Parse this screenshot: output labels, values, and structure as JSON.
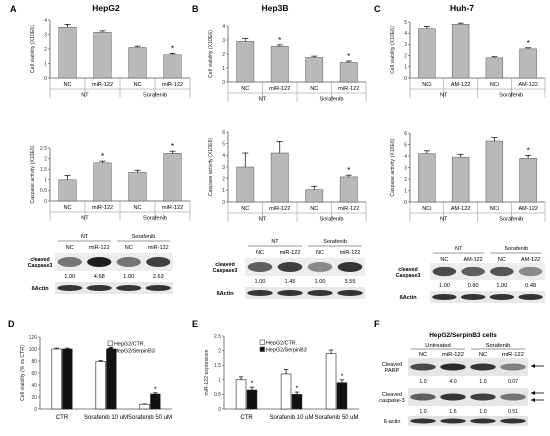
{
  "colors": {
    "bar_gray": "#b9b9b9",
    "bar_black": "#111111",
    "bar_white": "#ffffff",
    "axis": "#555555"
  },
  "panels": {
    "A": {
      "letter": "A",
      "title": "HepG2"
    },
    "B": {
      "letter": "B",
      "title": "Hep3B"
    },
    "C": {
      "letter": "C",
      "title": "Huh-7"
    },
    "D": {
      "letter": "D"
    },
    "E": {
      "letter": "E"
    },
    "F": {
      "letter": "F",
      "title": "HepG2/SerpinB3 cells"
    }
  },
  "chart_data": [
    {
      "id": "A-viab",
      "type": "bar",
      "ylabel": "Cell viability (X10E6)",
      "ylim": [
        0,
        4
      ],
      "yticks": [
        0,
        1,
        2,
        3,
        4
      ],
      "categories": [
        "NC",
        "miR-122",
        "NC",
        "miR-122"
      ],
      "values": [
        3.5,
        3.15,
        2.1,
        1.6
      ],
      "errors": [
        0.2,
        0.1,
        0.1,
        0.1
      ],
      "stars": [
        false,
        false,
        false,
        true
      ],
      "groups": [
        "NT",
        "Sorafenib"
      ]
    },
    {
      "id": "B-viab",
      "type": "bar",
      "ylabel": "Cell viability (X10E6)",
      "ylim": [
        0,
        4
      ],
      "yticks": [
        0,
        1,
        2,
        3,
        4
      ],
      "categories": [
        "NC",
        "miR-122",
        "NC",
        "miR-122"
      ],
      "values": [
        2.9,
        2.55,
        1.75,
        1.4
      ],
      "errors": [
        0.2,
        0.1,
        0.1,
        0.1
      ],
      "stars": [
        false,
        true,
        false,
        true
      ],
      "groups": [
        "NT",
        "Sorafenib"
      ]
    },
    {
      "id": "C-viab",
      "type": "bar",
      "ylabel": "Cell viability (X10E6)",
      "ylim": [
        0,
        5
      ],
      "yticks": [
        0,
        1,
        2,
        3,
        4,
        5
      ],
      "categories": [
        "NCi",
        "AM-122",
        "NCi",
        "AM-122"
      ],
      "values": [
        4.4,
        4.8,
        1.8,
        2.6
      ],
      "errors": [
        0.2,
        0.1,
        0.1,
        0.1
      ],
      "stars": [
        false,
        false,
        false,
        true
      ],
      "groups": [
        "NT",
        "Sorafenib"
      ]
    },
    {
      "id": "A-casp",
      "type": "bar",
      "ylabel": "Caspase activity (X10E6)",
      "ylim": [
        0,
        2.5
      ],
      "yticks": [
        0,
        0.5,
        1,
        1.5,
        2,
        2.5
      ],
      "categories": [
        "NC",
        "miR-122",
        "NC",
        "miR-122"
      ],
      "values": [
        1.0,
        1.8,
        1.35,
        2.25
      ],
      "errors": [
        0.2,
        0.08,
        0.1,
        0.1
      ],
      "stars": [
        false,
        true,
        false,
        true
      ],
      "groups": [
        "NT",
        "Sorafenib"
      ]
    },
    {
      "id": "B-casp",
      "type": "bar",
      "ylabel": "Caspase activity (X10E6)",
      "ylim": [
        0,
        6
      ],
      "yticks": [
        0,
        1,
        2,
        3,
        4,
        5,
        6
      ],
      "categories": [
        "NC",
        "miR-122",
        "NC",
        "miR-122"
      ],
      "values": [
        3.0,
        4.2,
        1.05,
        2.15
      ],
      "errors": [
        1.2,
        1.0,
        0.3,
        0.15
      ],
      "stars": [
        false,
        false,
        false,
        true
      ],
      "groups": [
        "NT",
        "Sorafenib"
      ]
    },
    {
      "id": "C-casp",
      "type": "bar",
      "ylabel": "Caspase activity (X10E6)",
      "ylim": [
        0,
        6
      ],
      "yticks": [
        0,
        1,
        2,
        3,
        4,
        5,
        6
      ],
      "categories": [
        "NCi",
        "AM-122",
        "NCi",
        "AM-122"
      ],
      "values": [
        4.2,
        3.9,
        5.3,
        3.8
      ],
      "errors": [
        0.25,
        0.25,
        0.3,
        0.25
      ],
      "stars": [
        false,
        false,
        false,
        true
      ],
      "groups": [
        "NT",
        "Sorafenib"
      ]
    },
    {
      "id": "D",
      "type": "bar",
      "ylabel": "Cell viability (% vs CTR)",
      "ylim": [
        0,
        120
      ],
      "yticks": [
        0,
        20,
        40,
        60,
        80,
        100,
        120
      ],
      "categories": [
        "CTR",
        "Sorafenib 10 uM",
        "Sorafenib 50 uM"
      ],
      "legend_position": "top-right",
      "series": [
        {
          "name": "HepG2/CTR.",
          "color": "white",
          "values": [
            100,
            79,
            8
          ],
          "errors": [
            1.5,
            1.5,
            0.5
          ],
          "stars": [
            false,
            false,
            false
          ]
        },
        {
          "name": "HepG2/SerpinB3",
          "color": "black",
          "values": [
            100,
            100,
            25
          ],
          "errors": [
            1.5,
            3,
            2
          ],
          "stars": [
            false,
            true,
            true
          ]
        }
      ]
    },
    {
      "id": "E",
      "type": "bar",
      "ylabel": "miR-122  expression",
      "ylim": [
        0,
        2.5
      ],
      "yticks": [
        0,
        0.5,
        1,
        1.5,
        2,
        2.5
      ],
      "categories": [
        "CTR",
        "Sorafenib 10 uM",
        "Sorafenib 50 uM"
      ],
      "legend_position": "top-left",
      "series": [
        {
          "name": "HepG2/CTR.",
          "color": "white",
          "values": [
            1.0,
            1.2,
            1.9
          ],
          "errors": [
            0.1,
            0.15,
            0.12
          ],
          "stars": [
            false,
            false,
            false
          ]
        },
        {
          "name": "HepG2/SerpinB3",
          "color": "black",
          "values": [
            0.65,
            0.5,
            0.9
          ],
          "errors": [
            0.1,
            0.08,
            0.1
          ],
          "stars": [
            true,
            true,
            true
          ]
        }
      ]
    }
  ],
  "blots": {
    "A": {
      "groups": [
        "NT",
        "Sorafenib"
      ],
      "lanes": [
        "NC",
        "miR-122",
        "NC",
        "miR-122"
      ],
      "protein": "cleaved Caspase3",
      "values": [
        "1.00",
        "4.68",
        "1.00",
        "2.63"
      ],
      "loading": "ßActin",
      "band_intensity": [
        0.55,
        0.95,
        0.55,
        0.8
      ]
    },
    "B": {
      "groups": [
        "NT",
        "Sorafenib"
      ],
      "lanes": [
        "NC",
        "miR-122",
        "NC",
        "miR-122"
      ],
      "protein": "cleaved Caspase3",
      "values": [
        "1.00",
        "1.45",
        "1.00",
        "3.55"
      ],
      "loading": "ßActin",
      "band_intensity": [
        0.65,
        0.8,
        0.45,
        0.85
      ]
    },
    "C": {
      "groups": [
        "NT",
        "Sorafenib"
      ],
      "lanes": [
        "NC",
        "AM-122",
        "NC",
        "AM-122"
      ],
      "protein": "cleaved Caspase3",
      "values": [
        "1.00",
        "0.80",
        "1.00",
        "0.48"
      ],
      "loading": "ßActin",
      "band_intensity": [
        0.75,
        0.65,
        0.7,
        0.45
      ]
    },
    "F": {
      "groups": [
        "Untreated",
        "Sorafenib"
      ],
      "lanes": [
        "NC",
        "miR-122",
        "NC",
        "miR-122"
      ],
      "rows": [
        {
          "protein": "Cleaved PARP",
          "values": [
            "1.0",
            "4.0",
            "1.0",
            "0.07"
          ],
          "band_intensity": [
            0.75,
            0.9,
            0.85,
            0.5
          ]
        },
        {
          "protein": "Cleaved caspase-3",
          "values": [
            "1.0",
            "1.6",
            "1.0",
            "0.51"
          ],
          "band_intensity": [
            0.65,
            0.85,
            0.8,
            0.55
          ]
        }
      ],
      "loading": "ß-actin"
    }
  }
}
